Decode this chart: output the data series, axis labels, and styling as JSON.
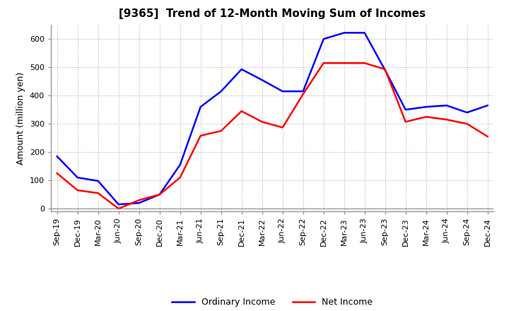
{
  "title": "[9365]  Trend of 12-Month Moving Sum of Incomes",
  "ylabel": "Amount (million yen)",
  "xlabels": [
    "Sep-19",
    "Dec-19",
    "Mar-20",
    "Jun-20",
    "Sep-20",
    "Dec-20",
    "Mar-21",
    "Jun-21",
    "Sep-21",
    "Dec-21",
    "Mar-22",
    "Jun-22",
    "Sep-22",
    "Dec-22",
    "Mar-23",
    "Jun-23",
    "Sep-23",
    "Dec-23",
    "Mar-24",
    "Jun-24",
    "Sep-24",
    "Dec-24"
  ],
  "ordinary_income": [
    185,
    110,
    98,
    15,
    20,
    50,
    155,
    360,
    415,
    493,
    455,
    415,
    415,
    600,
    622,
    622,
    490,
    350,
    360,
    365,
    340,
    365
  ],
  "net_income": [
    125,
    65,
    55,
    0,
    30,
    50,
    110,
    258,
    275,
    345,
    307,
    287,
    405,
    515,
    515,
    515,
    493,
    307,
    325,
    315,
    300,
    255
  ],
  "ordinary_color": "#0000FF",
  "net_color": "#FF0000",
  "ylim": [
    -10,
    650
  ],
  "yticks": [
    0,
    100,
    200,
    300,
    400,
    500,
    600
  ],
  "background_color": "#FFFFFF",
  "grid_color": "#AAAAAA",
  "title_fontsize": 11,
  "tick_fontsize": 8,
  "ylabel_fontsize": 9,
  "legend_labels": [
    "Ordinary Income",
    "Net Income"
  ],
  "legend_fontsize": 9
}
